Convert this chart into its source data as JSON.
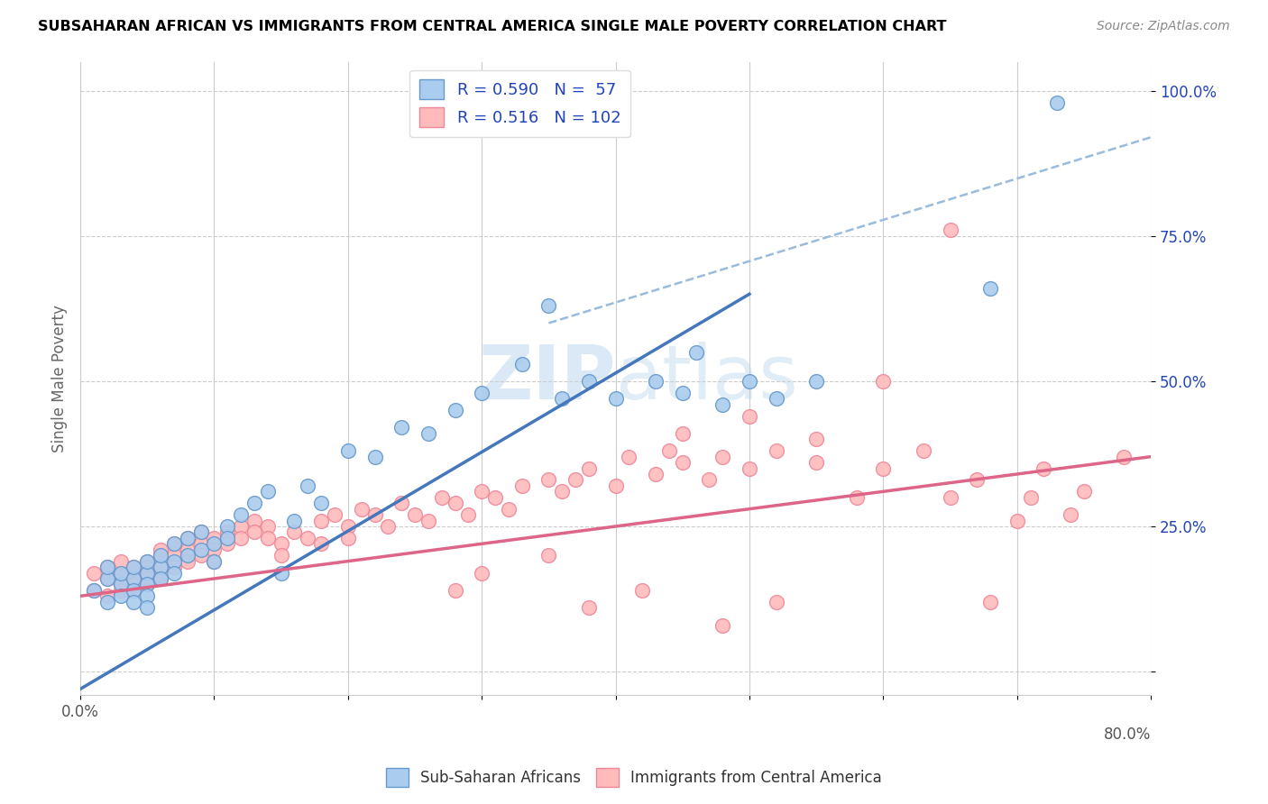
{
  "title": "SUBSAHARAN AFRICAN VS IMMIGRANTS FROM CENTRAL AMERICA SINGLE MALE POVERTY CORRELATION CHART",
  "source": "Source: ZipAtlas.com",
  "ylabel": "Single Male Poverty",
  "xmin": 0.0,
  "xmax": 0.8,
  "ymin": -0.04,
  "ymax": 1.05,
  "yticks": [
    0.0,
    0.25,
    0.5,
    0.75,
    1.0
  ],
  "ytick_labels": [
    "",
    "25.0%",
    "50.0%",
    "75.0%",
    "100.0%"
  ],
  "xticks": [
    0.0,
    0.1,
    0.2,
    0.3,
    0.4,
    0.5,
    0.6,
    0.7,
    0.8
  ],
  "blue_R": 0.59,
  "blue_N": 57,
  "pink_R": 0.516,
  "pink_N": 102,
  "blue_scatter_color_face": "#aaccee",
  "blue_scatter_color_edge": "#6699cc",
  "pink_scatter_color_face": "#ffbbbb",
  "pink_scatter_color_edge": "#ee8899",
  "blue_line_color": "#4477bb",
  "pink_line_color": "#dd6688",
  "dashed_line_color": "#99bbdd",
  "legend_text_color": "#2244bb",
  "legend_N_color": "#cc2222",
  "grid_color": "#cccccc",
  "watermark_color": "#cce0f5",
  "blue_scatter_x": [
    0.01,
    0.02,
    0.02,
    0.02,
    0.03,
    0.03,
    0.03,
    0.04,
    0.04,
    0.04,
    0.04,
    0.05,
    0.05,
    0.05,
    0.05,
    0.05,
    0.06,
    0.06,
    0.06,
    0.07,
    0.07,
    0.07,
    0.08,
    0.08,
    0.09,
    0.09,
    0.1,
    0.1,
    0.11,
    0.11,
    0.12,
    0.13,
    0.14,
    0.15,
    0.16,
    0.17,
    0.18,
    0.2,
    0.22,
    0.24,
    0.26,
    0.28,
    0.3,
    0.33,
    0.36,
    0.38,
    0.4,
    0.43,
    0.46,
    0.5,
    0.52,
    0.55,
    0.45,
    0.48,
    0.35,
    0.68,
    0.73
  ],
  "blue_scatter_y": [
    0.14,
    0.16,
    0.12,
    0.18,
    0.15,
    0.17,
    0.13,
    0.16,
    0.14,
    0.18,
    0.12,
    0.17,
    0.15,
    0.13,
    0.19,
    0.11,
    0.18,
    0.16,
    0.2,
    0.19,
    0.22,
    0.17,
    0.2,
    0.23,
    0.21,
    0.24,
    0.22,
    0.19,
    0.25,
    0.23,
    0.27,
    0.29,
    0.31,
    0.17,
    0.26,
    0.32,
    0.29,
    0.38,
    0.37,
    0.42,
    0.41,
    0.45,
    0.48,
    0.53,
    0.47,
    0.5,
    0.47,
    0.5,
    0.55,
    0.5,
    0.47,
    0.5,
    0.48,
    0.46,
    0.63,
    0.66,
    0.98
  ],
  "pink_scatter_x": [
    0.01,
    0.01,
    0.02,
    0.02,
    0.02,
    0.03,
    0.03,
    0.03,
    0.03,
    0.04,
    0.04,
    0.04,
    0.04,
    0.05,
    0.05,
    0.05,
    0.05,
    0.05,
    0.06,
    0.06,
    0.06,
    0.06,
    0.07,
    0.07,
    0.07,
    0.08,
    0.08,
    0.08,
    0.09,
    0.09,
    0.09,
    0.1,
    0.1,
    0.1,
    0.11,
    0.11,
    0.12,
    0.12,
    0.13,
    0.13,
    0.14,
    0.14,
    0.15,
    0.15,
    0.16,
    0.17,
    0.18,
    0.18,
    0.19,
    0.2,
    0.2,
    0.21,
    0.22,
    0.23,
    0.24,
    0.25,
    0.26,
    0.27,
    0.28,
    0.29,
    0.3,
    0.31,
    0.32,
    0.33,
    0.35,
    0.36,
    0.37,
    0.38,
    0.4,
    0.41,
    0.43,
    0.44,
    0.45,
    0.47,
    0.48,
    0.5,
    0.52,
    0.55,
    0.58,
    0.6,
    0.63,
    0.65,
    0.67,
    0.7,
    0.72,
    0.75,
    0.78,
    0.6,
    0.45,
    0.5,
    0.55,
    0.65,
    0.38,
    0.42,
    0.48,
    0.52,
    0.35,
    0.3,
    0.28,
    0.68,
    0.71,
    0.74
  ],
  "pink_scatter_y": [
    0.17,
    0.14,
    0.16,
    0.13,
    0.18,
    0.15,
    0.17,
    0.14,
    0.19,
    0.16,
    0.14,
    0.18,
    0.15,
    0.19,
    0.17,
    0.15,
    0.18,
    0.16,
    0.2,
    0.18,
    0.16,
    0.21,
    0.2,
    0.18,
    0.22,
    0.21,
    0.19,
    0.23,
    0.22,
    0.2,
    0.24,
    0.23,
    0.21,
    0.19,
    0.24,
    0.22,
    0.25,
    0.23,
    0.26,
    0.24,
    0.25,
    0.23,
    0.22,
    0.2,
    0.24,
    0.23,
    0.26,
    0.22,
    0.27,
    0.25,
    0.23,
    0.28,
    0.27,
    0.25,
    0.29,
    0.27,
    0.26,
    0.3,
    0.29,
    0.27,
    0.31,
    0.3,
    0.28,
    0.32,
    0.33,
    0.31,
    0.33,
    0.35,
    0.32,
    0.37,
    0.34,
    0.38,
    0.36,
    0.33,
    0.37,
    0.35,
    0.38,
    0.36,
    0.3,
    0.35,
    0.38,
    0.3,
    0.33,
    0.26,
    0.35,
    0.31,
    0.37,
    0.5,
    0.41,
    0.44,
    0.4,
    0.76,
    0.11,
    0.14,
    0.08,
    0.12,
    0.2,
    0.17,
    0.14,
    0.12,
    0.3,
    0.27
  ],
  "blue_line_x": [
    0.0,
    0.5
  ],
  "blue_line_y": [
    -0.03,
    0.65
  ],
  "dashed_line_x": [
    0.35,
    0.8
  ],
  "dashed_line_y": [
    0.6,
    0.92
  ],
  "pink_line_x": [
    0.0,
    0.8
  ],
  "pink_line_y": [
    0.13,
    0.37
  ]
}
